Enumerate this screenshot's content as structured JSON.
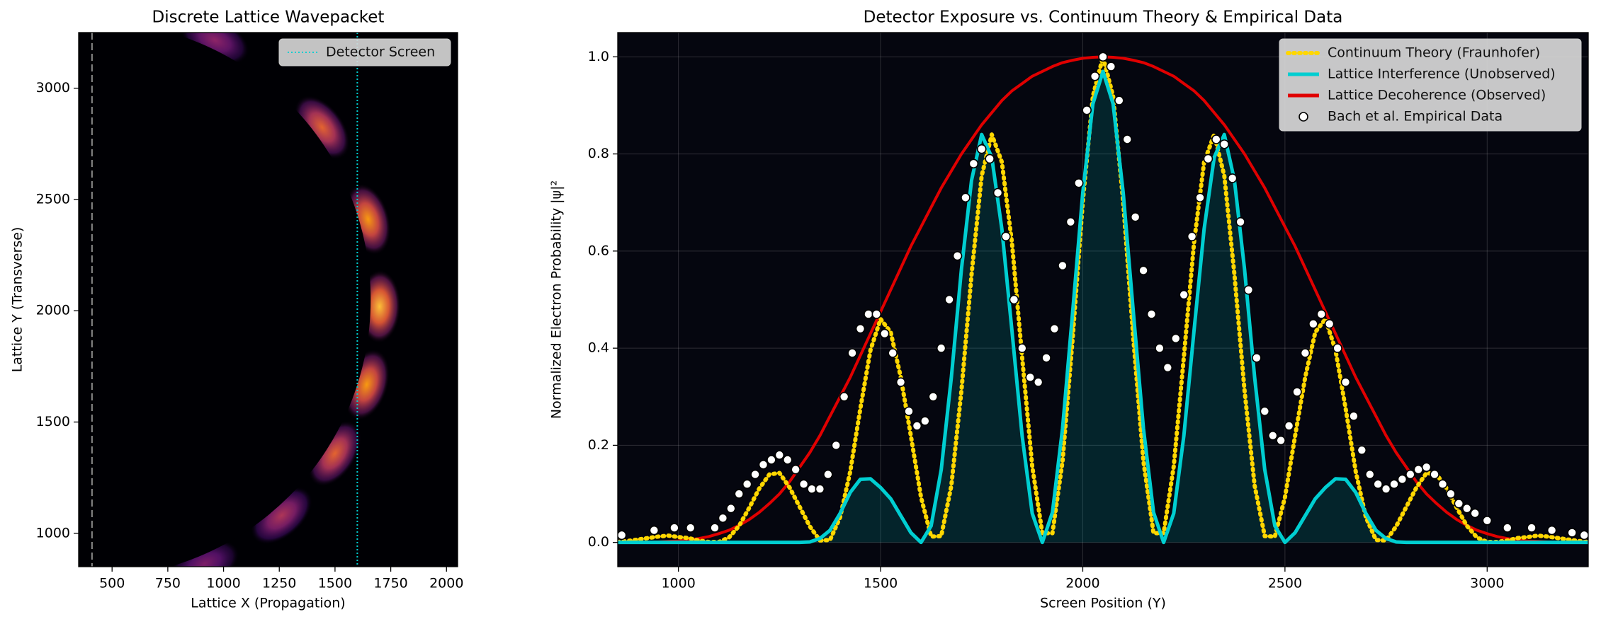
{
  "chart_data": [
    {
      "type": "heatmap",
      "title": "Discrete Lattice Wavepacket",
      "xlabel": "Lattice X (Propagation)",
      "ylabel": "Lattice Y (Transverse)",
      "xlim": [
        350,
        2050
      ],
      "ylim": [
        850,
        3250
      ],
      "xticks": [
        500,
        750,
        1000,
        1250,
        1500,
        1750,
        2000
      ],
      "yticks": [
        1000,
        1500,
        2000,
        2500,
        3000
      ],
      "wavefront": {
        "center": [
          410,
          2050
        ],
        "radius": 1250
      },
      "lobes": {
        "y": [
          3180,
          2800,
          2400,
          2020,
          1680,
          1380,
          1110,
          900
        ],
        "intensity": [
          0.45,
          0.75,
          0.9,
          1.0,
          0.9,
          0.75,
          0.55,
          0.4
        ]
      },
      "vlines": [
        {
          "x": 410,
          "color": "#888888",
          "style": "dashed"
        },
        {
          "name": "Detector Screen",
          "x": 1600,
          "color": "#00ced1",
          "style": "dotted"
        }
      ],
      "legend": "upper right"
    },
    {
      "type": "line",
      "title": "Detector Exposure vs. Continuum Theory & Empirical Data",
      "xlabel": "Screen Position (Y)",
      "ylabel": "Normalized Electron Probability |ψ|²",
      "xlim": [
        850,
        3250
      ],
      "ylim": [
        -0.05,
        1.05
      ],
      "xticks": [
        1000,
        1500,
        2000,
        2500,
        3000
      ],
      "yticks": [
        {
          "value": 0,
          "label": "0.0"
        },
        0.2,
        0.4,
        0.6,
        0.8,
        {
          "value": 1,
          "label": "1.0"
        }
      ],
      "grid": true,
      "legend": "upper right",
      "fill_series": 1,
      "x": [
        850,
        875,
        900,
        925,
        950,
        975,
        1000,
        1025,
        1050,
        1075,
        1100,
        1125,
        1150,
        1175,
        1200,
        1225,
        1250,
        1275,
        1300,
        1325,
        1350,
        1375,
        1400,
        1425,
        1450,
        1475,
        1500,
        1525,
        1550,
        1575,
        1600,
        1625,
        1650,
        1675,
        1700,
        1725,
        1750,
        1775,
        1800,
        1825,
        1850,
        1875,
        1900,
        1925,
        1950,
        1975,
        2000,
        2025,
        2050,
        2075,
        2100,
        2125,
        2150,
        2175,
        2200,
        2225,
        2250,
        2275,
        2300,
        2325,
        2350,
        2375,
        2400,
        2425,
        2450,
        2475,
        2500,
        2525,
        2550,
        2575,
        2600,
        2625,
        2650,
        2675,
        2700,
        2725,
        2750,
        2775,
        2800,
        2825,
        2850,
        2875,
        2900,
        2925,
        2950,
        2975,
        3000,
        3025,
        3050,
        3075,
        3100,
        3125,
        3150,
        3175,
        3200,
        3225,
        3250
      ],
      "series": [
        {
          "name": "Continuum Theory (Fraunhofer)",
          "color": "#ffd700",
          "style": "dotted",
          "values": [
            0.001,
            0.003,
            0.006,
            0.009,
            0.012,
            0.014,
            0.011,
            0.009,
            0.004,
            0.001,
            0.001,
            0.01,
            0.034,
            0.071,
            0.111,
            0.14,
            0.143,
            0.113,
            0.073,
            0.033,
            0.004,
            0.005,
            0.052,
            0.146,
            0.276,
            0.396,
            0.46,
            0.433,
            0.34,
            0.219,
            0.093,
            0.012,
            0.013,
            0.117,
            0.313,
            0.552,
            0.755,
            0.84,
            0.783,
            0.616,
            0.382,
            0.157,
            0.019,
            0.019,
            0.167,
            0.42,
            0.701,
            0.919,
            1.0,
            0.919,
            0.701,
            0.42,
            0.167,
            0.019,
            0.019,
            0.157,
            0.382,
            0.616,
            0.783,
            0.84,
            0.755,
            0.552,
            0.313,
            0.117,
            0.013,
            0.012,
            0.093,
            0.219,
            0.34,
            0.433,
            0.46,
            0.396,
            0.276,
            0.146,
            0.052,
            0.005,
            0.004,
            0.033,
            0.073,
            0.113,
            0.143,
            0.14,
            0.111,
            0.071,
            0.034,
            0.01,
            0.001,
            0.001,
            0.004,
            0.009,
            0.011,
            0.014,
            0.012,
            0.009,
            0.006,
            0.003,
            0.001
          ]
        },
        {
          "name": "Lattice Interference (Unobserved)",
          "color": "#00ced1",
          "style": "solid",
          "values": [
            0,
            0,
            0,
            0,
            0,
            0,
            0,
            0,
            0,
            0,
            0,
            0,
            0,
            0,
            0,
            0,
            0,
            0,
            0,
            0.001,
            0.008,
            0.025,
            0.06,
            0.103,
            0.13,
            0.131,
            0.113,
            0.09,
            0.055,
            0.02,
            0,
            0.034,
            0.15,
            0.34,
            0.563,
            0.746,
            0.84,
            0.793,
            0.645,
            0.435,
            0.22,
            0.06,
            0,
            0.062,
            0.235,
            0.475,
            0.72,
            0.903,
            0.97,
            0.903,
            0.72,
            0.475,
            0.235,
            0.062,
            0,
            0.06,
            0.22,
            0.435,
            0.645,
            0.793,
            0.84,
            0.746,
            0.563,
            0.34,
            0.15,
            0.034,
            0,
            0.02,
            0.055,
            0.09,
            0.113,
            0.131,
            0.13,
            0.103,
            0.06,
            0.025,
            0.008,
            0.001,
            0,
            0,
            0,
            0,
            0,
            0,
            0,
            0,
            0,
            0,
            0,
            0,
            0,
            0,
            0,
            0,
            0,
            0,
            0
          ]
        },
        {
          "name": "Lattice Decoherence (Observed)",
          "color": "#e00000",
          "style": "solid",
          "values": [
            0,
            0,
            0,
            0.001,
            0.001,
            0.002,
            0.003,
            0.005,
            0.008,
            0.012,
            0.018,
            0.025,
            0.035,
            0.047,
            0.062,
            0.08,
            0.1,
            0.125,
            0.155,
            0.185,
            0.22,
            0.26,
            0.3,
            0.34,
            0.385,
            0.43,
            0.475,
            0.52,
            0.565,
            0.61,
            0.65,
            0.69,
            0.73,
            0.765,
            0.8,
            0.83,
            0.86,
            0.885,
            0.91,
            0.93,
            0.945,
            0.96,
            0.97,
            0.98,
            0.988,
            0.993,
            0.997,
            0.999,
            1.0,
            0.999,
            0.997,
            0.993,
            0.988,
            0.98,
            0.97,
            0.96,
            0.945,
            0.93,
            0.91,
            0.885,
            0.86,
            0.83,
            0.8,
            0.765,
            0.73,
            0.69,
            0.65,
            0.61,
            0.565,
            0.52,
            0.475,
            0.43,
            0.385,
            0.34,
            0.3,
            0.26,
            0.22,
            0.185,
            0.155,
            0.125,
            0.1,
            0.08,
            0.062,
            0.047,
            0.035,
            0.025,
            0.018,
            0.012,
            0.008,
            0.005,
            0.003,
            0.002,
            0.001,
            0.001,
            0,
            0,
            0
          ]
        },
        {
          "name": "Bach et al. Empirical Data",
          "color": "#ffffff",
          "style": "markers",
          "x": [
            860,
            940,
            990,
            1030,
            1090,
            1110,
            1130,
            1150,
            1170,
            1190,
            1210,
            1230,
            1250,
            1270,
            1290,
            1310,
            1330,
            1350,
            1370,
            1390,
            1410,
            1430,
            1450,
            1470,
            1490,
            1510,
            1530,
            1550,
            1570,
            1590,
            1610,
            1630,
            1650,
            1670,
            1690,
            1710,
            1730,
            1750,
            1770,
            1790,
            1810,
            1830,
            1850,
            1870,
            1890,
            1910,
            1930,
            1950,
            1970,
            1990,
            2010,
            2030,
            2050,
            2070,
            2090,
            2110,
            2130,
            2150,
            2170,
            2190,
            2210,
            2230,
            2250,
            2270,
            2290,
            2310,
            2330,
            2350,
            2370,
            2390,
            2410,
            2430,
            2450,
            2470,
            2490,
            2510,
            2530,
            2550,
            2570,
            2590,
            2610,
            2630,
            2650,
            2670,
            2690,
            2710,
            2730,
            2750,
            2770,
            2790,
            2810,
            2830,
            2850,
            2870,
            2890,
            2910,
            2930,
            2950,
            2970,
            3000,
            3050,
            3110,
            3160,
            3210,
            3240
          ],
          "values": [
            0.015,
            0.025,
            0.03,
            0.03,
            0.03,
            0.05,
            0.07,
            0.1,
            0.12,
            0.14,
            0.16,
            0.17,
            0.18,
            0.17,
            0.15,
            0.12,
            0.11,
            0.11,
            0.14,
            0.2,
            0.3,
            0.39,
            0.44,
            0.47,
            0.47,
            0.43,
            0.39,
            0.33,
            0.27,
            0.24,
            0.25,
            0.3,
            0.4,
            0.5,
            0.59,
            0.71,
            0.78,
            0.81,
            0.79,
            0.72,
            0.63,
            0.5,
            0.4,
            0.34,
            0.33,
            0.38,
            0.44,
            0.57,
            0.66,
            0.74,
            0.89,
            0.96,
            1.0,
            0.98,
            0.91,
            0.83,
            0.67,
            0.56,
            0.47,
            0.4,
            0.36,
            0.42,
            0.51,
            0.63,
            0.71,
            0.79,
            0.83,
            0.82,
            0.75,
            0.66,
            0.52,
            0.38,
            0.27,
            0.22,
            0.21,
            0.24,
            0.31,
            0.39,
            0.45,
            0.47,
            0.45,
            0.4,
            0.33,
            0.26,
            0.19,
            0.14,
            0.12,
            0.11,
            0.12,
            0.13,
            0.14,
            0.15,
            0.155,
            0.14,
            0.12,
            0.1,
            0.08,
            0.07,
            0.06,
            0.045,
            0.03,
            0.03,
            0.025,
            0.02,
            0.015
          ]
        }
      ]
    }
  ]
}
